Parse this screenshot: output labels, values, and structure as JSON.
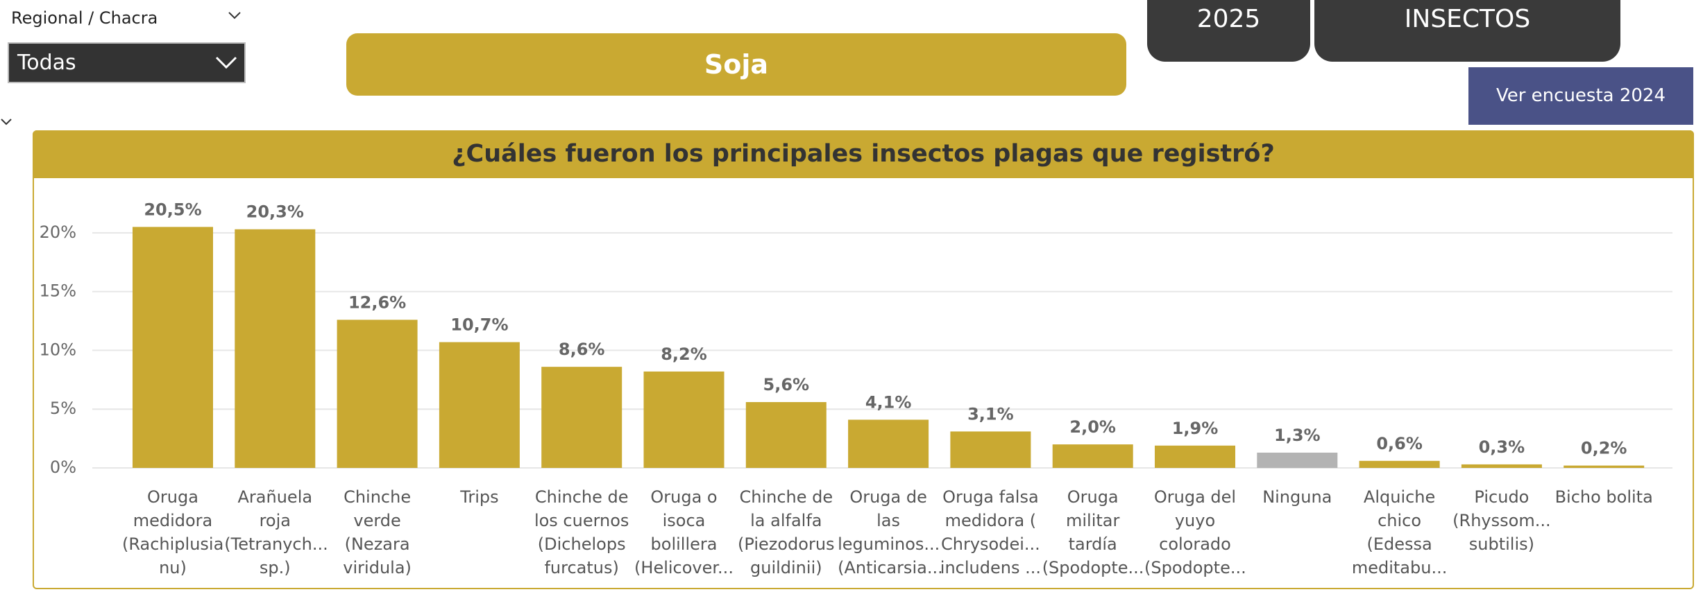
{
  "filter": {
    "label": "Regional / Chacra",
    "selected": "Todas"
  },
  "crop_button": "Soja",
  "tabs": [
    "2025",
    "INSECTOS"
  ],
  "link_button": "Ver encuesta 2024",
  "chart_data": {
    "type": "bar",
    "title": "¿Cuáles fueron los principales insectos plagas que registró?",
    "categories": [
      "Oruga medidora (Rachiplusia nu)",
      "Arañuela roja (Tetranych... sp.)",
      "Chinche verde (Nezara viridula)",
      "Trips",
      "Chinche de los cuernos (Dichelops furcatus)",
      "Oruga o isoca bolillera (Helicover...",
      "Chinche de la alfalfa (Piezodorus guildinii)",
      "Oruga de las leguminos... (Anticarsia...",
      "Oruga falsa medidora ( Chrysodei... includens ...",
      "Oruga militar tardía (Spodopte...",
      "Oruga del yuyo colorado (Spodopte...",
      "Ninguna",
      "Alquiche chico (Edessa meditabu...",
      "Picudo (Rhyssom... subtilis)",
      "Bicho bolita"
    ],
    "values": [
      20.5,
      20.3,
      12.6,
      10.7,
      8.6,
      8.2,
      5.6,
      4.1,
      3.1,
      2.0,
      1.9,
      1.3,
      0.6,
      0.3,
      0.2
    ],
    "value_labels": [
      "20,5%",
      "20,3%",
      "12,6%",
      "10,7%",
      "8,6%",
      "8,2%",
      "5,6%",
      "4,1%",
      "3,1%",
      "2,0%",
      "1,9%",
      "1,3%",
      "0,6%",
      "0,3%",
      "0,2%"
    ],
    "colors": [
      "#C9A932",
      "#C9A932",
      "#C9A932",
      "#C9A932",
      "#C9A932",
      "#C9A932",
      "#C9A932",
      "#C9A932",
      "#C9A932",
      "#C9A932",
      "#C9A932",
      "#B3B3B3",
      "#C9A932",
      "#C9A932",
      "#C9A932"
    ],
    "ylim": [
      0,
      24
    ],
    "yticks": [
      {
        "value": 0,
        "label": "0%"
      },
      {
        "value": 5,
        "label": "5%"
      },
      {
        "value": 10,
        "label": "10%"
      },
      {
        "value": 15,
        "label": "15%"
      },
      {
        "value": 20,
        "label": "20%"
      }
    ],
    "grid": true
  }
}
